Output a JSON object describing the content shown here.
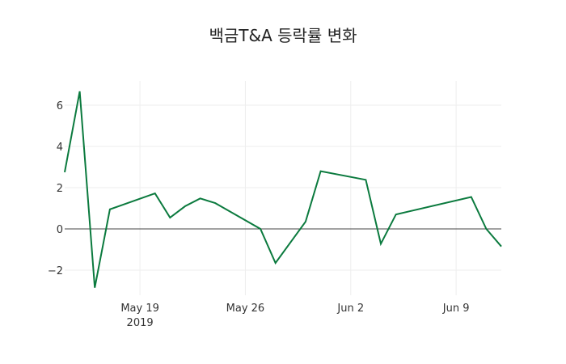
{
  "chart_data": {
    "type": "line",
    "title": "백금T&A 등락률 변화",
    "xlabel": "",
    "ylabel": "",
    "x": [
      "2019-05-14",
      "2019-05-15",
      "2019-05-16",
      "2019-05-17",
      "2019-05-20",
      "2019-05-21",
      "2019-05-22",
      "2019-05-23",
      "2019-05-24",
      "2019-05-27",
      "2019-05-28",
      "2019-05-30",
      "2019-05-31",
      "2019-06-03",
      "2019-06-04",
      "2019-06-05",
      "2019-06-10",
      "2019-06-11",
      "2019-06-12"
    ],
    "series": [
      {
        "name": "등락률",
        "color": "#0b7a3e",
        "values": [
          2.75,
          6.67,
          -2.85,
          0.95,
          1.72,
          0.55,
          1.1,
          1.48,
          1.25,
          0.0,
          -1.65,
          0.35,
          2.8,
          2.38,
          -0.72,
          0.7,
          1.55,
          0.0,
          -0.85
        ]
      }
    ],
    "x_ticks": [
      {
        "label": "May 19",
        "sub": "2019",
        "date": "2019-05-19"
      },
      {
        "label": "May 26",
        "sub": "",
        "date": "2019-05-26"
      },
      {
        "label": "Jun 2",
        "sub": "",
        "date": "2019-06-02"
      },
      {
        "label": "Jun 9",
        "sub": "",
        "date": "2019-06-09"
      }
    ],
    "y_ticks": [
      -2,
      0,
      2,
      4,
      6
    ],
    "y_tick_labels": [
      "−2",
      "0",
      "2",
      "4",
      "6"
    ],
    "xlim": [
      "2019-05-14",
      "2019-06-12"
    ],
    "ylim": [
      -3.2,
      7.2
    ],
    "grid": true,
    "legend": "none",
    "zero_line_color": "#444444",
    "grid_color": "#eeeeee"
  }
}
